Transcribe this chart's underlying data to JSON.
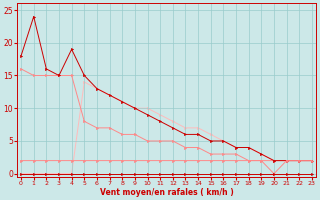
{
  "bg_color": "#cce8e8",
  "grid_color": "#99cccc",
  "line_color_dark": "#cc0000",
  "line_color_mid": "#ff8888",
  "line_color_light": "#ffbbbb",
  "xlabel": "Vent moyen/en rafales ( km/h )",
  "xlabel_color": "#cc0000",
  "tick_color": "#cc0000",
  "xlim": [
    0,
    23
  ],
  "ylim": [
    0,
    26
  ],
  "xticks": [
    0,
    1,
    2,
    3,
    4,
    5,
    6,
    7,
    8,
    9,
    10,
    11,
    12,
    13,
    14,
    15,
    16,
    17,
    18,
    19,
    20,
    21,
    22,
    23
  ],
  "yticks": [
    0,
    5,
    10,
    15,
    20,
    25
  ],
  "line1_x": [
    0,
    1,
    2,
    3,
    4,
    5,
    6,
    7,
    8,
    9,
    10,
    11,
    12,
    13,
    14,
    15,
    16,
    17,
    18,
    19,
    20,
    21,
    22,
    23
  ],
  "line1_y": [
    0,
    0,
    0,
    0,
    0,
    0,
    0,
    0,
    0,
    0,
    0,
    0,
    0,
    0,
    0,
    0,
    0,
    0,
    0,
    0,
    0,
    0,
    0,
    0
  ],
  "line2_x": [
    0,
    1,
    2,
    3,
    4,
    5,
    6,
    7,
    8,
    9,
    10,
    11,
    12,
    13,
    14,
    15,
    16,
    17,
    18,
    19,
    20,
    21,
    22,
    23
  ],
  "line2_y": [
    2,
    2,
    2,
    2,
    2,
    2,
    2,
    2,
    2,
    2,
    2,
    2,
    2,
    2,
    2,
    2,
    2,
    2,
    2,
    2,
    0,
    2,
    2,
    2
  ],
  "line3_x": [
    0,
    1,
    2,
    3,
    4,
    5,
    6,
    7,
    8,
    9,
    10,
    11,
    12,
    13,
    14,
    15,
    16,
    17,
    18,
    19,
    20,
    21,
    22,
    23
  ],
  "line3_y": [
    18,
    24,
    16,
    15,
    19,
    15,
    13,
    12,
    11,
    10,
    9,
    8,
    7,
    6,
    6,
    5,
    5,
    4,
    4,
    3,
    2,
    2,
    2,
    2
  ],
  "line4_x": [
    0,
    1,
    2,
    3,
    4,
    5,
    6,
    7,
    8,
    9,
    10,
    11,
    12,
    13,
    14,
    15,
    16,
    17,
    18,
    19,
    20,
    21,
    22,
    23
  ],
  "line4_y": [
    16,
    15,
    15,
    15,
    15,
    8,
    7,
    7,
    6,
    6,
    5,
    5,
    5,
    4,
    4,
    3,
    3,
    3,
    2,
    2,
    2,
    2,
    2,
    2
  ],
  "line5_x": [
    0,
    1,
    2,
    3,
    4,
    5,
    6,
    7,
    8,
    9,
    10,
    11,
    12,
    13,
    14,
    15,
    16,
    17,
    18,
    19,
    20,
    21,
    22,
    23
  ],
  "line5_y": [
    0,
    0,
    0,
    0,
    0,
    14,
    13,
    12,
    11,
    10,
    10,
    9,
    8,
    7,
    7,
    6,
    5,
    4,
    4,
    3,
    2,
    2,
    2,
    2
  ]
}
